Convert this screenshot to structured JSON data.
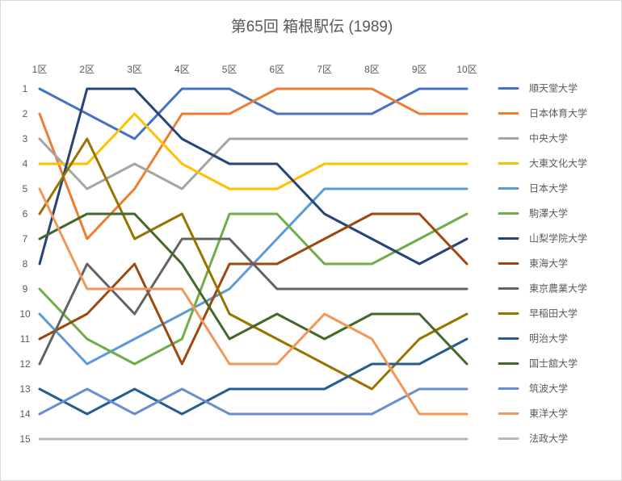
{
  "chart_data": {
    "type": "line",
    "title": "第65回 箱根駅伝 (1989)",
    "xlabel": "",
    "ylabel": "",
    "categories": [
      "1区",
      "2区",
      "3区",
      "4区",
      "5区",
      "6区",
      "7区",
      "8区",
      "9区",
      "10区"
    ],
    "x_axis_position": "top",
    "y_ticks": [
      1,
      2,
      3,
      4,
      5,
      6,
      7,
      8,
      9,
      10,
      11,
      12,
      13,
      14,
      15
    ],
    "ylim": [
      1,
      15
    ],
    "y_reversed": true,
    "grid": false,
    "legend_position": "right",
    "series": [
      {
        "name": "順天堂大学",
        "color": "#4472C4",
        "values": [
          1,
          2,
          3,
          1,
          1,
          2,
          2,
          2,
          1,
          1
        ]
      },
      {
        "name": "日本体育大学",
        "color": "#ED7D31",
        "values": [
          2,
          7,
          5,
          2,
          2,
          1,
          1,
          1,
          2,
          2
        ]
      },
      {
        "name": "中央大学",
        "color": "#A5A5A5",
        "values": [
          3,
          5,
          4,
          5,
          3,
          3,
          3,
          3,
          3,
          3
        ]
      },
      {
        "name": "大東文化大学",
        "color": "#FFC000",
        "values": [
          4,
          4,
          2,
          4,
          5,
          5,
          4,
          4,
          4,
          4
        ]
      },
      {
        "name": "日本大学",
        "color": "#5B9BD5",
        "values": [
          10,
          12,
          11,
          10,
          9,
          7,
          5,
          5,
          5,
          5
        ]
      },
      {
        "name": "駒澤大学",
        "color": "#70AD47",
        "values": [
          9,
          11,
          12,
          11,
          6,
          6,
          8,
          8,
          7,
          6
        ]
      },
      {
        "name": "山梨学院大学",
        "color": "#264478",
        "values": [
          8,
          1,
          1,
          3,
          4,
          4,
          6,
          7,
          8,
          7
        ]
      },
      {
        "name": "東海大学",
        "color": "#9E480E",
        "values": [
          11,
          10,
          8,
          12,
          8,
          8,
          7,
          6,
          6,
          8
        ]
      },
      {
        "name": "東京農業大学",
        "color": "#636363",
        "values": [
          12,
          8,
          10,
          7,
          7,
          9,
          9,
          9,
          9,
          9
        ]
      },
      {
        "name": "早稲田大学",
        "color": "#997300",
        "values": [
          6,
          3,
          7,
          6,
          10,
          11,
          12,
          13,
          11,
          10
        ]
      },
      {
        "name": "明治大学",
        "color": "#255E91",
        "values": [
          13,
          14,
          13,
          14,
          13,
          13,
          13,
          12,
          12,
          11
        ]
      },
      {
        "name": "国士舘大学",
        "color": "#43682B",
        "values": [
          7,
          6,
          6,
          8,
          11,
          10,
          11,
          10,
          10,
          12
        ]
      },
      {
        "name": "筑波大学",
        "color": "#698ED0",
        "values": [
          14,
          13,
          14,
          13,
          14,
          14,
          14,
          14,
          13,
          13
        ]
      },
      {
        "name": "東洋大学",
        "color": "#F1975A",
        "values": [
          5,
          9,
          9,
          9,
          12,
          12,
          10,
          11,
          14,
          14
        ]
      },
      {
        "name": "法政大学",
        "color": "#B7B7B7",
        "values": [
          15,
          15,
          15,
          15,
          15,
          15,
          15,
          15,
          15,
          15
        ]
      }
    ]
  }
}
